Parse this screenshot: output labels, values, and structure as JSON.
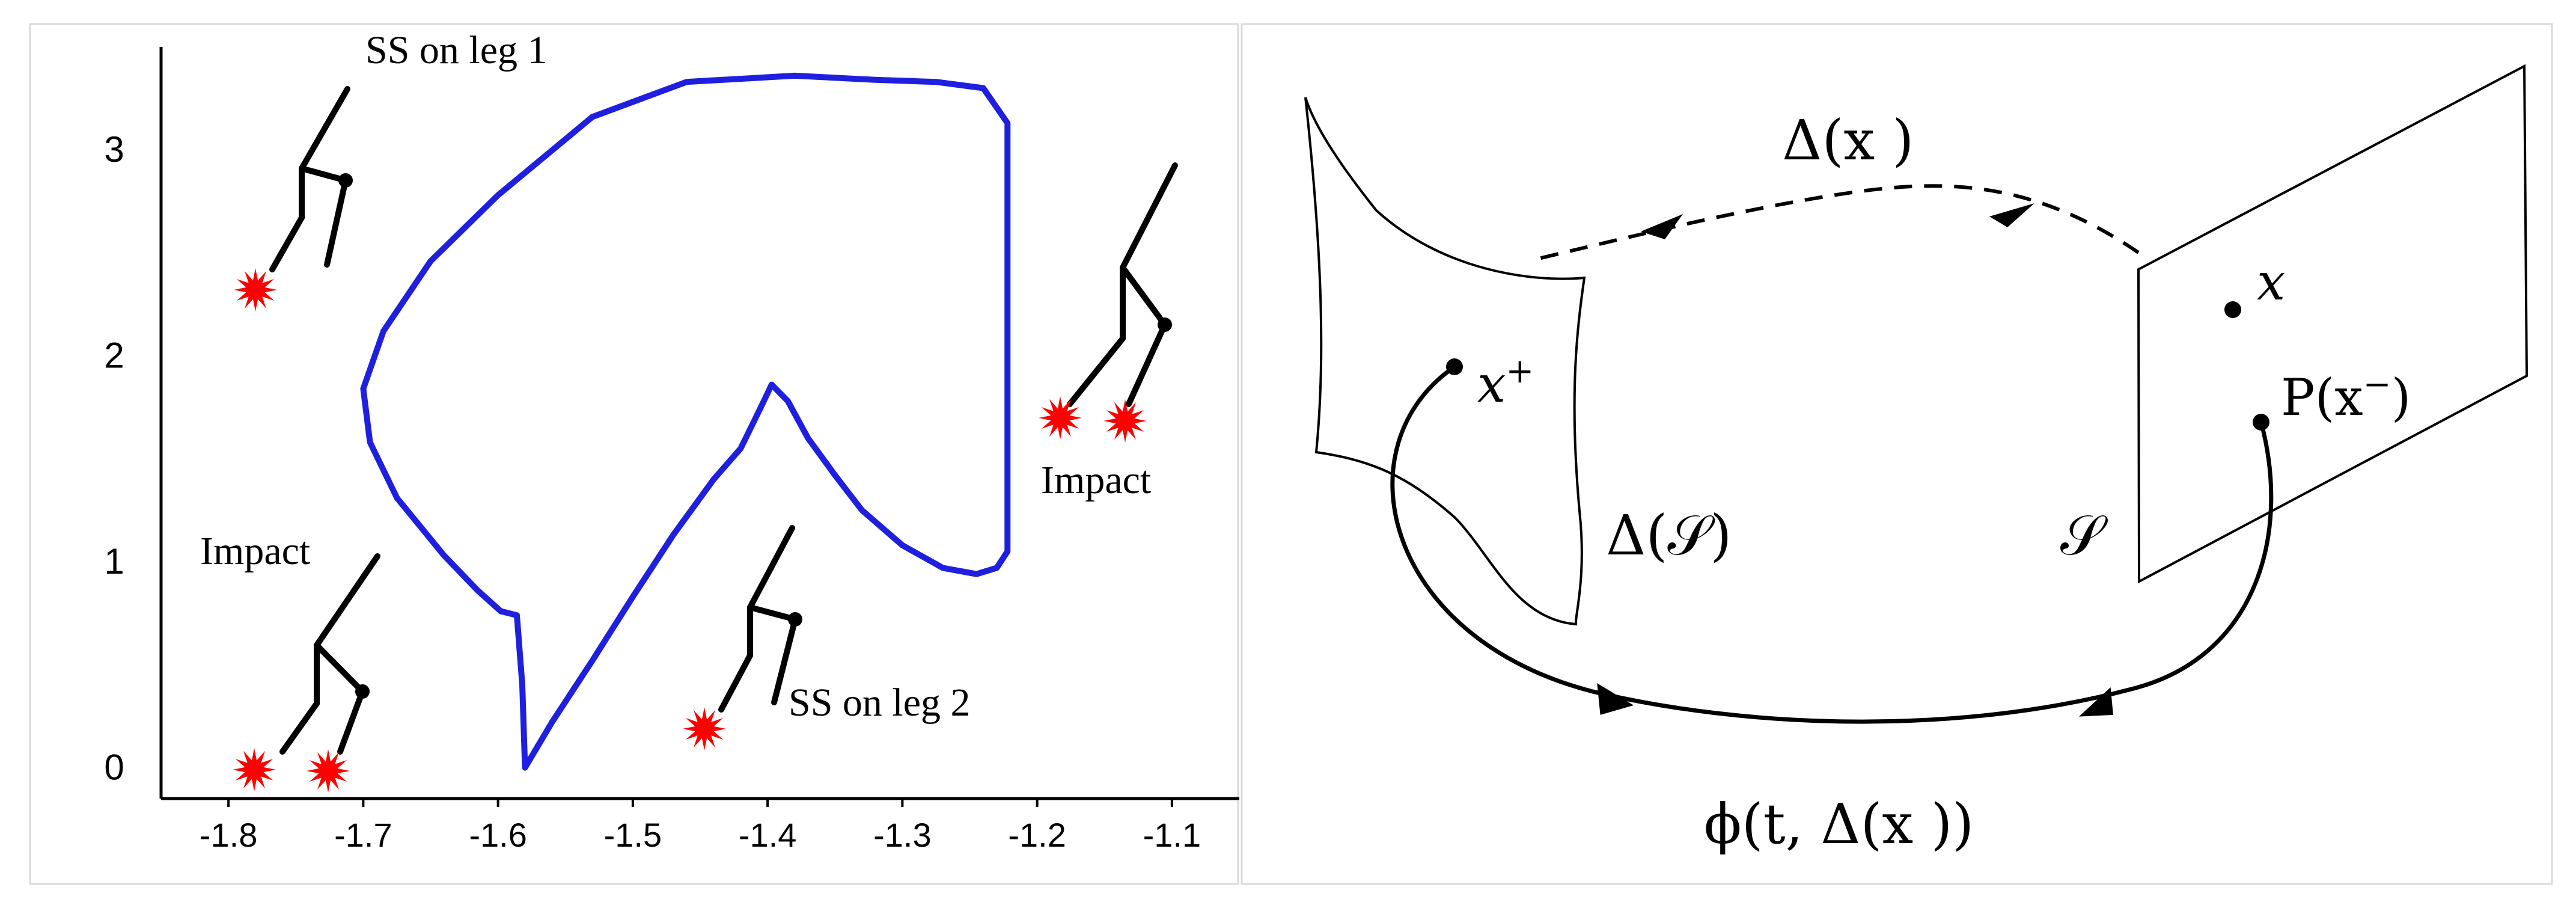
{
  "left_panel": {
    "chart_data": {
      "type": "line",
      "x_ticks": [
        "-1.8",
        "-1.7",
        "-1.6",
        "-1.5",
        "-1.4",
        "-1.3",
        "-1.2",
        "-1.1"
      ],
      "y_ticks": [
        "0",
        "1",
        "2",
        "3"
      ],
      "xlim": [
        -1.85,
        -1.05
      ],
      "ylim": [
        -0.15,
        3.5
      ],
      "grid": false,
      "series": [
        {
          "color": "#1f1fe0",
          "x": [
            -1.58,
            -1.56,
            -1.53,
            -1.5,
            -1.47,
            -1.44,
            -1.42,
            -1.405,
            -1.397,
            -1.385,
            -1.37,
            -1.35,
            -1.33,
            -1.3,
            -1.27,
            -1.245,
            -1.23,
            -1.222,
            -1.222,
            -1.24,
            -1.275,
            -1.32,
            -1.38,
            -1.46,
            -1.53,
            -1.6,
            -1.65,
            -1.685,
            -1.7,
            -1.695,
            -1.675,
            -1.64,
            -1.615,
            -1.598,
            -1.586,
            -1.582,
            -1.58
          ],
          "y": [
            0.0,
            0.22,
            0.52,
            0.83,
            1.13,
            1.4,
            1.55,
            1.75,
            1.86,
            1.78,
            1.6,
            1.42,
            1.25,
            1.08,
            0.97,
            0.94,
            0.97,
            1.05,
            3.13,
            3.3,
            3.33,
            3.34,
            3.36,
            3.33,
            3.16,
            2.78,
            2.46,
            2.12,
            1.84,
            1.58,
            1.31,
            1.03,
            0.86,
            0.76,
            0.74,
            0.4,
            0.0
          ]
        }
      ]
    },
    "labels": {
      "ss_leg1": "SS on leg 1",
      "impact_right": "Impact",
      "impact_left": "Impact",
      "ss_leg2": "SS on leg 2"
    }
  },
  "right_panel": {
    "delta_top": "Δ(x  )",
    "x_dot": "x",
    "x_plus": "x",
    "x_plus_sup": "+",
    "p_label": "P(x",
    "p_label_sup": "−",
    "p_label_close": ")",
    "delta_s": "Δ(𝒮)",
    "s_label": "𝒮",
    "flow_label": "ϕ(t, Δ(x  ))"
  },
  "colors": {
    "curve": "#1f1fe0",
    "impact": "#ff0000",
    "ink": "#000000"
  }
}
